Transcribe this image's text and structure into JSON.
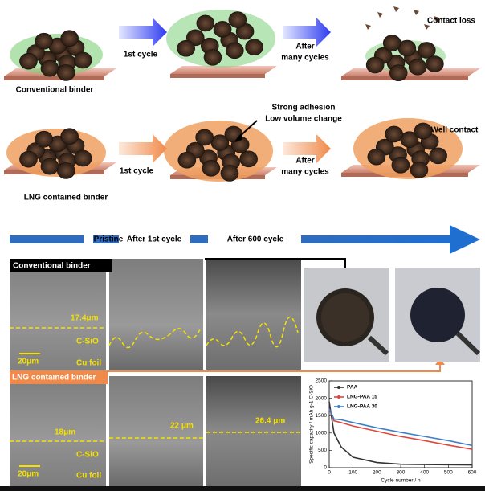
{
  "schematic": {
    "top": {
      "label": "Conventional binder",
      "step1": "1st cycle",
      "step2": [
        "After",
        "many cycles"
      ],
      "result": "Contact loss"
    },
    "bottom": {
      "label": "LNG contained binder",
      "step1": "1st cycle",
      "note": [
        "Strong adhesion",
        "Low volume change"
      ],
      "step2": [
        "After",
        "many cycles"
      ],
      "result": "Well contact"
    }
  },
  "timeline": [
    "Pristine",
    "After 1st cycle",
    "After 600 cycle"
  ],
  "sem": {
    "top": {
      "title": "Conventional binder",
      "thickness": "17.4μm",
      "layer": "C-SiO",
      "scale": "20μm",
      "substrate": "Cu foil"
    },
    "bottom": {
      "title": "LNG contained binder",
      "thickness": [
        "18μm",
        "22 μm",
        "26.4 μm"
      ],
      "layer": "C-SiO",
      "scale": "20μm",
      "substrate": "Cu foil"
    }
  },
  "chart_data": {
    "type": "line",
    "x_label": "Cycle number / n",
    "y_label": "Specific capacity / mAh g-1 C-SiO",
    "x": [
      0,
      20,
      50,
      100,
      200,
      300,
      400,
      500,
      600
    ],
    "series": [
      {
        "name": "PAA",
        "color": "#333333",
        "values": [
          1900,
          1000,
          600,
          300,
          150,
          100,
          90,
          85,
          80
        ]
      },
      {
        "name": "LNG-PAA 15",
        "color": "#e0463a",
        "values": [
          1700,
          1350,
          1300,
          1200,
          1050,
          900,
          780,
          650,
          530
        ]
      },
      {
        "name": "LNG-PAA 30",
        "color": "#3f7fc8",
        "values": [
          1700,
          1400,
          1380,
          1300,
          1150,
          1020,
          900,
          780,
          640
        ]
      }
    ],
    "xlim": [
      0,
      600
    ],
    "xticks": [
      0,
      100,
      200,
      300,
      400,
      500,
      600
    ],
    "ylim": [
      0,
      2500
    ],
    "yticks": [
      0,
      500,
      1000,
      1500,
      2000,
      2500
    ]
  }
}
